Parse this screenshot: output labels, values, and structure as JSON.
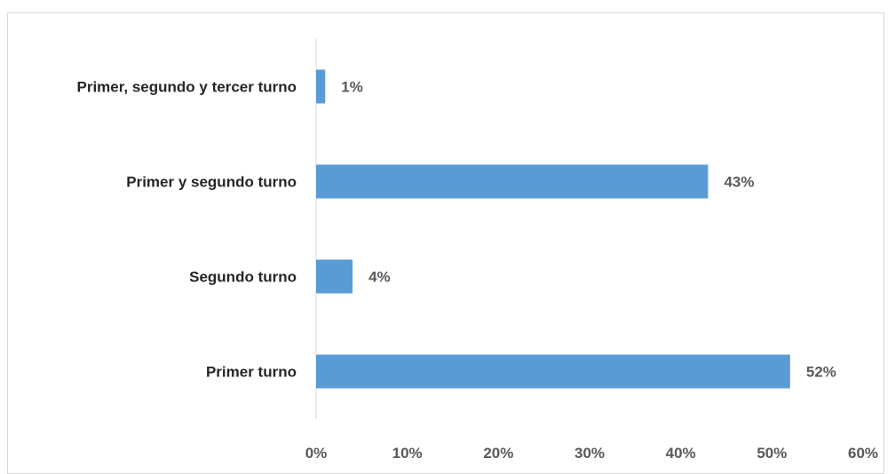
{
  "chart_data": {
    "type": "bar",
    "orientation": "horizontal",
    "categories": [
      "Primer, segundo y tercer turno",
      "Primer y segundo turno",
      "Segundo turno",
      "Primer turno"
    ],
    "values": [
      1,
      43,
      4,
      52
    ],
    "value_labels": [
      "1%",
      "43%",
      "4%",
      "52%"
    ],
    "xlim": [
      0,
      60
    ],
    "xticks": [
      0,
      10,
      20,
      30,
      40,
      50,
      60
    ],
    "xtick_labels": [
      "0%",
      "10%",
      "20%",
      "30%",
      "40%",
      "50%",
      "60%"
    ],
    "grid": false,
    "legend": "none",
    "bar_color": "#5b9bd5"
  }
}
